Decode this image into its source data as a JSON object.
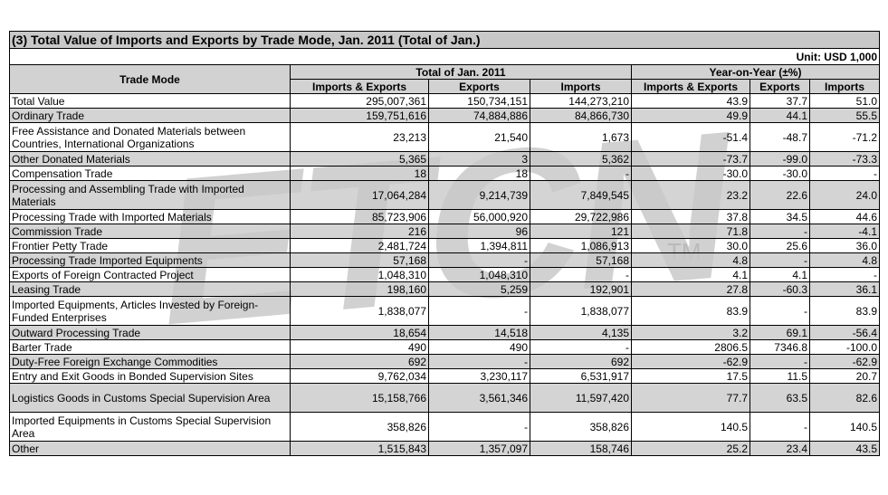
{
  "title": "(3) Total Value of Imports and Exports by Trade Mode, Jan. 2011 (Total of Jan.)",
  "unit": "Unit: USD 1,000",
  "headers": {
    "trade_mode": "Trade Mode",
    "total_group": "Total of Jan. 2011",
    "yoy_group": "Year-on-Year (±%)",
    "sub": [
      "Imports & Exports",
      "Exports",
      "Imports",
      "Imports & Exports",
      "Exports",
      "Imports"
    ]
  },
  "watermark": "ETCN",
  "watermark_tm": "TM",
  "rows": [
    {
      "mode": "Total Value",
      "ie": "295,007,361",
      "ex": "150,734,151",
      "im": "144,273,210",
      "yie": "43.9",
      "yex": "37.7",
      "yim": "51.0",
      "lines": 1,
      "shade": false
    },
    {
      "mode": "Ordinary Trade",
      "ie": "159,751,616",
      "ex": "74,884,886",
      "im": "84,866,730",
      "yie": "49.9",
      "yex": "44.1",
      "yim": "55.5",
      "lines": 1,
      "shade": true
    },
    {
      "mode": "Free Assistance and Donated Materials between Countries, International Organizations",
      "ie": "23,213",
      "ex": "21,540",
      "im": "1,673",
      "yie": "-51.4",
      "yex": "-48.7",
      "yim": "-71.2",
      "lines": 2,
      "shade": false
    },
    {
      "mode": "Other Donated Materials",
      "ie": "5,365",
      "ex": "3",
      "im": "5,362",
      "yie": "-73.7",
      "yex": "-99.0",
      "yim": "-73.3",
      "lines": 1,
      "shade": true
    },
    {
      "mode": "Compensation Trade",
      "ie": "18",
      "ex": "18",
      "im": "-",
      "yie": "-30.0",
      "yex": "-30.0",
      "yim": "-",
      "lines": 1,
      "shade": false
    },
    {
      "mode": "Processing and Assembling Trade with Imported Materials",
      "ie": "17,064,284",
      "ex": "9,214,739",
      "im": "7,849,545",
      "yie": "23.2",
      "yex": "22.6",
      "yim": "24.0",
      "lines": 2,
      "shade": true
    },
    {
      "mode": "Processing Trade with Imported Materials",
      "ie": "85,723,906",
      "ex": "56,000,920",
      "im": "29,722,986",
      "yie": "37.8",
      "yex": "34.5",
      "yim": "44.6",
      "lines": 1,
      "shade": false
    },
    {
      "mode": "Commission Trade",
      "ie": "216",
      "ex": "96",
      "im": "121",
      "yie": "71.8",
      "yex": "-",
      "yim": "-4.1",
      "lines": 1,
      "shade": true
    },
    {
      "mode": "Frontier Petty Trade",
      "ie": "2,481,724",
      "ex": "1,394,811",
      "im": "1,086,913",
      "yie": "30.0",
      "yex": "25.6",
      "yim": "36.0",
      "lines": 1,
      "shade": false
    },
    {
      "mode": "Processing Trade Imported Equipments",
      "ie": "57,168",
      "ex": "-",
      "im": "57,168",
      "yie": "4.8",
      "yex": "-",
      "yim": "4.8",
      "lines": 1,
      "shade": true
    },
    {
      "mode": "Exports of Foreign Contracted Project",
      "ie": "1,048,310",
      "ex": "1,048,310",
      "im": "-",
      "yie": "4.1",
      "yex": "4.1",
      "yim": "-",
      "lines": 1,
      "shade": false
    },
    {
      "mode": "Leasing Trade",
      "ie": "198,160",
      "ex": "5,259",
      "im": "192,901",
      "yie": "27.8",
      "yex": "-60.3",
      "yim": "36.1",
      "lines": 1,
      "shade": true
    },
    {
      "mode": "Imported Equipments, Articles Invested by Foreign-Funded Enterprises",
      "ie": "1,838,077",
      "ex": "-",
      "im": "1,838,077",
      "yie": "83.9",
      "yex": "-",
      "yim": "83.9",
      "lines": 2,
      "shade": false
    },
    {
      "mode": "Outward Processing Trade",
      "ie": "18,654",
      "ex": "14,518",
      "im": "4,135",
      "yie": "3.2",
      "yex": "69.1",
      "yim": "-56.4",
      "lines": 1,
      "shade": true
    },
    {
      "mode": "Barter Trade",
      "ie": "490",
      "ex": "490",
      "im": "-",
      "yie": "2806.5",
      "yex": "7346.8",
      "yim": "-100.0",
      "lines": 1,
      "shade": false
    },
    {
      "mode": "Duty-Free Foreign Exchange Commodities",
      "ie": "692",
      "ex": "-",
      "im": "692",
      "yie": "-62.9",
      "yex": "-",
      "yim": "-62.9",
      "lines": 1,
      "shade": true
    },
    {
      "mode": "Entry and Exit Goods in Bonded Supervision Sites",
      "ie": "9,762,034",
      "ex": "3,230,117",
      "im": "6,531,917",
      "yie": "17.5",
      "yex": "11.5",
      "yim": "20.7",
      "lines": 1,
      "shade": false
    },
    {
      "mode": "Logistics Goods in Customs Special Supervision Area",
      "ie": "15,158,766",
      "ex": "3,561,346",
      "im": "11,597,420",
      "yie": "77.7",
      "yex": "63.5",
      "yim": "82.6",
      "lines": 2,
      "shade": true
    },
    {
      "mode": "Imported Equipments in Customs Special Supervision Area",
      "ie": "358,826",
      "ex": "-",
      "im": "358,826",
      "yie": "140.5",
      "yex": "-",
      "yim": "140.5",
      "lines": 2,
      "shade": false
    },
    {
      "mode": "Other",
      "ie": "1,515,843",
      "ex": "1,357,097",
      "im": "158,746",
      "yie": "25.2",
      "yex": "23.4",
      "yim": "43.5",
      "lines": 1,
      "shade": true
    }
  ]
}
